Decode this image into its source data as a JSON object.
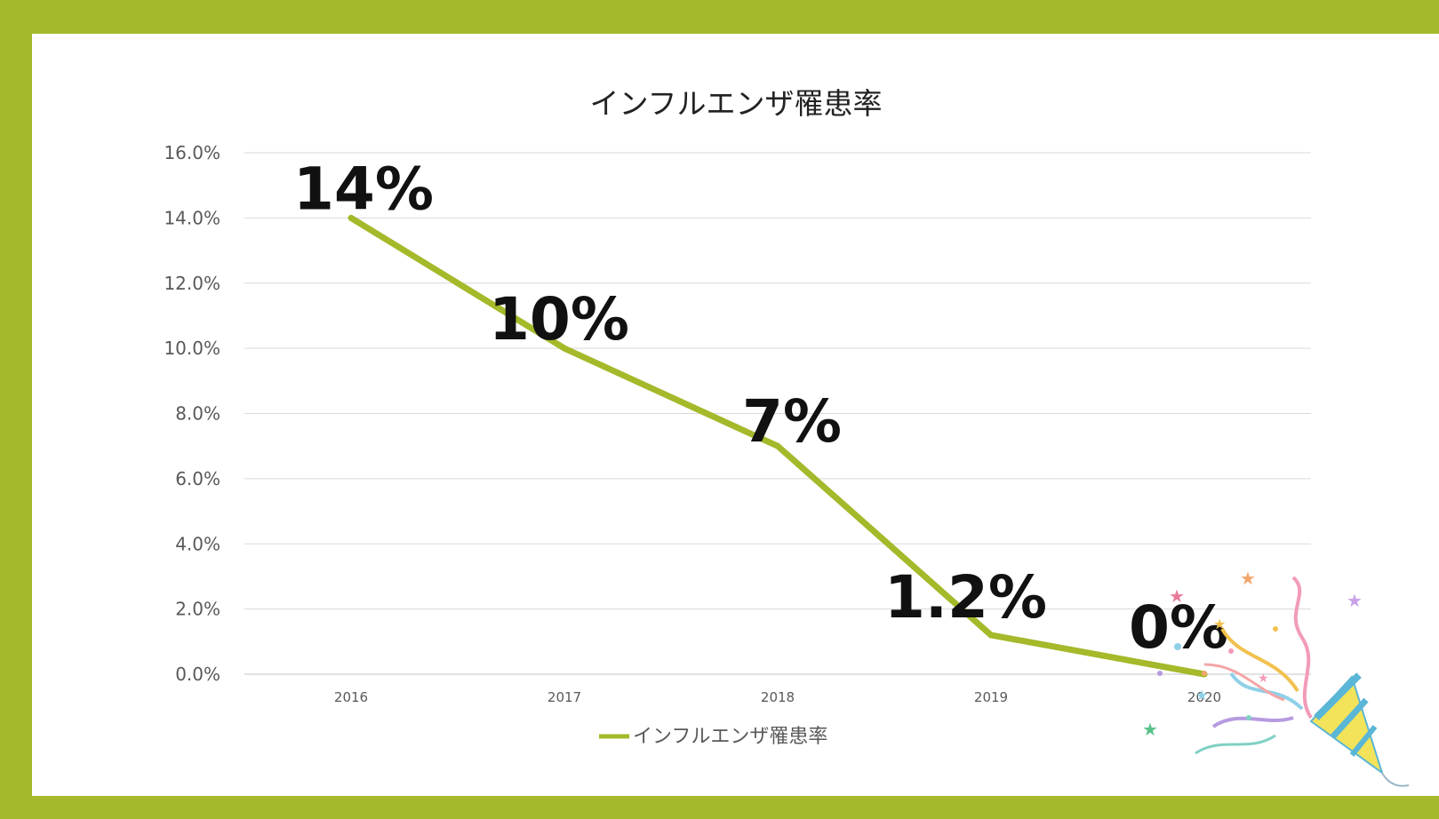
{
  "colors": {
    "frame": "#A5B92A",
    "line": "#A5B92A",
    "grid": "#D9D9D9"
  },
  "chart_data": {
    "type": "line",
    "title": "インフルエンザ罹患率",
    "categories": [
      "2016",
      "2017",
      "2018",
      "2019",
      "2020"
    ],
    "series": [
      {
        "name": "インフルエンザ罹患率",
        "values": [
          14.0,
          10.0,
          7.0,
          1.2,
          0.0
        ]
      }
    ],
    "data_labels": [
      "14%",
      "10%",
      "7%",
      "1.2%",
      "0%"
    ],
    "ylim": [
      0,
      16
    ],
    "yticks": [
      "0.0%",
      "2.0%",
      "4.0%",
      "6.0%",
      "8.0%",
      "10.0%",
      "12.0%",
      "14.0%",
      "16.0%"
    ],
    "grid": true,
    "legend": "bottom",
    "decoration_icon": "party-popper-icon"
  }
}
